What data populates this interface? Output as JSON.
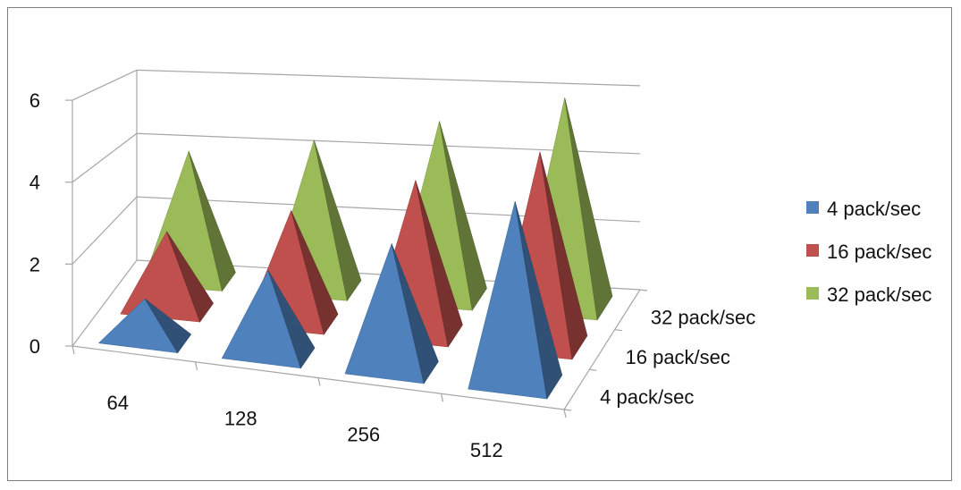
{
  "chart_data": {
    "type": "bar",
    "subtype": "3d-pyramid",
    "title": "",
    "xlabel": "",
    "ylabel": "",
    "categories": [
      "64",
      "128",
      "256",
      "512"
    ],
    "depth_labels": [
      "4 pack/sec",
      "16 pack/sec",
      "32 pack/sec"
    ],
    "ylim": [
      0,
      6
    ],
    "yticks": [
      "0",
      "2",
      "4",
      "6"
    ],
    "grid": true,
    "legend_position": "right",
    "series": [
      {
        "name": "4 pack/sec",
        "color": "#4F81BD",
        "values": [
          1.0,
          2.0,
          2.9,
          4.1
        ]
      },
      {
        "name": "16 pack/sec",
        "color": "#C0504D",
        "values": [
          2.1,
          2.9,
          3.9,
          4.8
        ]
      },
      {
        "name": "32 pack/sec",
        "color": "#9BBB59",
        "values": [
          3.8,
          4.3,
          5.0,
          5.8
        ]
      }
    ]
  }
}
